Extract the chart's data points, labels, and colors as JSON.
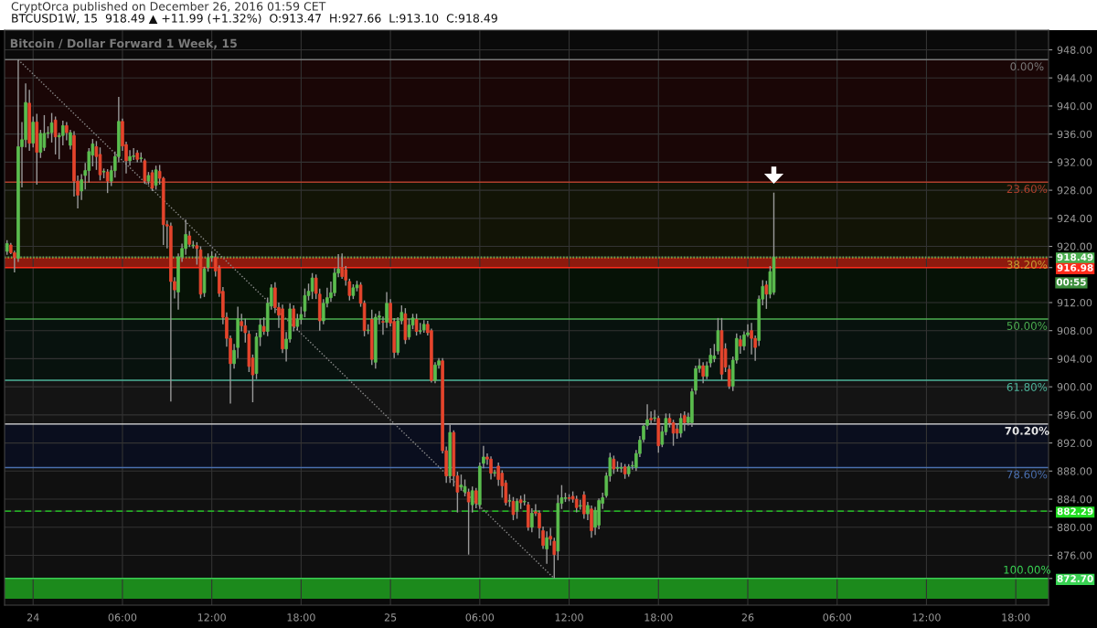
{
  "chart_data": {
    "type": "candlestick",
    "title": "Bitcoin / Dollar Forward 1 Week, 15",
    "subtitle": "BTCUSD1W, 15  918.49 ▲ +11.99 (+1.32%)  O:913.47  H:927.66  L:913.10  C:918.49",
    "annotations": [
      "CryptOrca published on December 26, 2016 01:59 CET",
      "00:55",
      {
        "text": "0.00%",
        "x": "2016-12-26T18:45",
        "y": 946.6
      },
      {
        "text": "23.60%",
        "x": "2016-12-26T18:45",
        "y": 929.16
      },
      {
        "text": "38.20%",
        "x": "2016-12-26T18:45",
        "y": 918.37
      },
      {
        "text": "50.00%",
        "x": "2016-12-26T18:45",
        "y": 909.65
      },
      {
        "text": "61.80%",
        "x": "2016-12-26T18:45",
        "y": 900.93
      },
      {
        "text": "70.20%",
        "x": "2016-12-26T18:45",
        "y": 894.7
      },
      {
        "text": "78.60%",
        "x": "2016-12-26T18:45",
        "y": 888.49
      },
      {
        "text": "100.00%",
        "x": "2016-12-26T18:45",
        "y": 872.7
      }
    ],
    "x": [
      "2016-12-23T22:15",
      "2016-12-23T22:30",
      "2016-12-23T22:45",
      "2016-12-23T23:00",
      "2016-12-23T23:15",
      "2016-12-23T23:30",
      "2016-12-23T23:45",
      "2016-12-24T00:00",
      "2016-12-24T00:15",
      "2016-12-24T00:30",
      "2016-12-24T00:45",
      "2016-12-24T01:00",
      "2016-12-24T01:15",
      "2016-12-24T01:30",
      "2016-12-24T01:45",
      "2016-12-24T02:00",
      "2016-12-24T02:15",
      "2016-12-24T02:30",
      "2016-12-24T02:45",
      "2016-12-24T03:00",
      "2016-12-24T03:15",
      "2016-12-24T03:30",
      "2016-12-24T03:45",
      "2016-12-24T04:00",
      "2016-12-24T04:15",
      "2016-12-24T04:30",
      "2016-12-24T04:45",
      "2016-12-24T05:00",
      "2016-12-24T05:15",
      "2016-12-24T05:30",
      "2016-12-24T05:45",
      "2016-12-24T06:00",
      "2016-12-24T06:15",
      "2016-12-24T06:30",
      "2016-12-24T06:45",
      "2016-12-24T07:00",
      "2016-12-24T07:15",
      "2016-12-24T07:30",
      "2016-12-24T07:45",
      "2016-12-24T08:00",
      "2016-12-24T08:15",
      "2016-12-24T08:30",
      "2016-12-24T08:45",
      "2016-12-24T09:00",
      "2016-12-24T09:15",
      "2016-12-24T09:30",
      "2016-12-24T09:45",
      "2016-12-24T10:00",
      "2016-12-24T10:15",
      "2016-12-24T10:30",
      "2016-12-24T10:45",
      "2016-12-24T11:00",
      "2016-12-24T11:15",
      "2016-12-24T11:30",
      "2016-12-24T11:45",
      "2016-12-24T12:00",
      "2016-12-24T12:15",
      "2016-12-24T12:30",
      "2016-12-24T12:45",
      "2016-12-24T13:00",
      "2016-12-24T13:15",
      "2016-12-24T13:30",
      "2016-12-24T13:45",
      "2016-12-24T14:00",
      "2016-12-24T14:15",
      "2016-12-24T14:30",
      "2016-12-24T14:45",
      "2016-12-24T15:00",
      "2016-12-24T15:15",
      "2016-12-24T15:30",
      "2016-12-24T15:45",
      "2016-12-24T16:00",
      "2016-12-24T16:15",
      "2016-12-24T16:30",
      "2016-12-24T16:45",
      "2016-12-24T17:00",
      "2016-12-24T17:15",
      "2016-12-24T17:30",
      "2016-12-24T17:45",
      "2016-12-24T18:00",
      "2016-12-24T18:15",
      "2016-12-24T18:30",
      "2016-12-24T18:45",
      "2016-12-24T19:00",
      "2016-12-24T19:15",
      "2016-12-24T19:30",
      "2016-12-24T19:45",
      "2016-12-24T20:00",
      "2016-12-24T20:15",
      "2016-12-24T20:30",
      "2016-12-24T20:45",
      "2016-12-24T21:00",
      "2016-12-24T21:15",
      "2016-12-24T21:30",
      "2016-12-24T21:45",
      "2016-12-24T22:00",
      "2016-12-24T22:15",
      "2016-12-24T22:30",
      "2016-12-24T22:45",
      "2016-12-24T23:00",
      "2016-12-24T23:15",
      "2016-12-24T23:30",
      "2016-12-24T23:45",
      "2016-12-25T00:00",
      "2016-12-25T00:15",
      "2016-12-25T00:30",
      "2016-12-25T00:45",
      "2016-12-25T01:00",
      "2016-12-25T01:15",
      "2016-12-25T01:30",
      "2016-12-25T01:45",
      "2016-12-25T02:00",
      "2016-12-25T02:15",
      "2016-12-25T02:30",
      "2016-12-25T02:45",
      "2016-12-25T03:00",
      "2016-12-25T03:15",
      "2016-12-25T03:30",
      "2016-12-25T03:45",
      "2016-12-25T04:00",
      "2016-12-25T04:15",
      "2016-12-25T04:30",
      "2016-12-25T04:45",
      "2016-12-25T05:00",
      "2016-12-25T05:15",
      "2016-12-25T05:30",
      "2016-12-25T05:45",
      "2016-12-25T06:00",
      "2016-12-25T06:15",
      "2016-12-25T06:30",
      "2016-12-25T06:45",
      "2016-12-25T07:00",
      "2016-12-25T07:15",
      "2016-12-25T07:30",
      "2016-12-25T07:45",
      "2016-12-25T08:00",
      "2016-12-25T08:15",
      "2016-12-25T08:30",
      "2016-12-25T08:45",
      "2016-12-25T09:00",
      "2016-12-25T09:15",
      "2016-12-25T09:30",
      "2016-12-25T09:45",
      "2016-12-25T10:00",
      "2016-12-25T10:15",
      "2016-12-25T10:30",
      "2016-12-25T10:45",
      "2016-12-25T11:00",
      "2016-12-25T11:15",
      "2016-12-25T11:30",
      "2016-12-25T11:45",
      "2016-12-25T12:00",
      "2016-12-25T12:15",
      "2016-12-25T12:30",
      "2016-12-25T12:45",
      "2016-12-25T13:00",
      "2016-12-25T13:15",
      "2016-12-25T13:30",
      "2016-12-25T13:45",
      "2016-12-25T14:00",
      "2016-12-25T14:15",
      "2016-12-25T14:30",
      "2016-12-25T14:45",
      "2016-12-25T15:00",
      "2016-12-25T15:15",
      "2016-12-25T15:30",
      "2016-12-25T15:45",
      "2016-12-25T16:00",
      "2016-12-25T16:15",
      "2016-12-25T16:30",
      "2016-12-25T16:45",
      "2016-12-25T17:00",
      "2016-12-25T17:15",
      "2016-12-25T17:30",
      "2016-12-25T17:45",
      "2016-12-25T18:00",
      "2016-12-25T18:15",
      "2016-12-25T18:30",
      "2016-12-25T18:45",
      "2016-12-25T19:00",
      "2016-12-25T19:15",
      "2016-12-25T19:30",
      "2016-12-25T19:45",
      "2016-12-25T20:00",
      "2016-12-25T20:15",
      "2016-12-25T20:30",
      "2016-12-25T20:45",
      "2016-12-25T21:00",
      "2016-12-25T21:15",
      "2016-12-25T21:30",
      "2016-12-25T21:45",
      "2016-12-25T22:00",
      "2016-12-25T22:15",
      "2016-12-25T22:30",
      "2016-12-25T22:45",
      "2016-12-25T23:00",
      "2016-12-25T23:15",
      "2016-12-25T23:30",
      "2016-12-25T23:45",
      "2016-12-26T00:00",
      "2016-12-26T00:15",
      "2016-12-26T00:30",
      "2016-12-26T00:45",
      "2016-12-26T01:00",
      "2016-12-26T01:15",
      "2016-12-26T01:30",
      "2016-12-26T01:45"
    ],
    "ohlc": [
      [
        919.3,
        920.9,
        918.8,
        920.4
      ],
      [
        920.2,
        920.5,
        918.9,
        919.1
      ],
      [
        919.1,
        919.4,
        916.3,
        918.4
      ],
      [
        918.3,
        946.6,
        917.8,
        934.2
      ],
      [
        934.2,
        937.7,
        928.4,
        935.2
      ],
      [
        935.2,
        943.2,
        934.1,
        940.5
      ],
      [
        940.4,
        942.3,
        933.6,
        934.7
      ],
      [
        934.7,
        938.5,
        934.1,
        937.7
      ],
      [
        937.7,
        938.9,
        928.8,
        933.4
      ],
      [
        933.4,
        936.6,
        932.6,
        936.1
      ],
      [
        934.1,
        938.7,
        933.6,
        936.1
      ],
      [
        936.1,
        937.1,
        935.4,
        936.2
      ],
      [
        936.2,
        939.0,
        934.8,
        937.6
      ],
      [
        938.0,
        938.5,
        933.1,
        935.6
      ],
      [
        935.6,
        936.2,
        932.4,
        935.8
      ],
      [
        935.8,
        937.9,
        934.4,
        937.2
      ],
      [
        937.2,
        937.7,
        935.1,
        936.2
      ],
      [
        934.4,
        936.6,
        933.8,
        936.2
      ],
      [
        935.8,
        936.4,
        927.1,
        929.3
      ],
      [
        929.3,
        930.1,
        925.4,
        927.3
      ],
      [
        927.9,
        930.3,
        926.6,
        929.5
      ],
      [
        930.1,
        931.9,
        928.1,
        930.8
      ],
      [
        930.8,
        934.0,
        929.1,
        933.5
      ],
      [
        933.0,
        935.3,
        931.4,
        934.6
      ],
      [
        934.2,
        935.0,
        930.9,
        932.8
      ],
      [
        933.1,
        934.1,
        929.4,
        930.2
      ],
      [
        930.6,
        931.1,
        929.7,
        930.7
      ],
      [
        930.6,
        931.0,
        927.6,
        929.3
      ],
      [
        929.3,
        931.5,
        928.6,
        930.8
      ],
      [
        930.8,
        933.5,
        929.8,
        932.8
      ],
      [
        932.8,
        941.3,
        932.0,
        937.8
      ],
      [
        937.8,
        938.2,
        933.6,
        934.3
      ],
      [
        934.5,
        934.9,
        930.4,
        932.2
      ],
      [
        932.2,
        933.7,
        931.5,
        932.8
      ],
      [
        932.8,
        934.0,
        932.3,
        932.9
      ],
      [
        933.3,
        933.7,
        932.0,
        932.4
      ],
      [
        932.5,
        933.4,
        932.0,
        932.6
      ],
      [
        932.2,
        932.5,
        928.9,
        929.3
      ],
      [
        929.3,
        930.6,
        928.8,
        930.1
      ],
      [
        930.5,
        930.9,
        927.9,
        928.3
      ],
      [
        928.7,
        931.5,
        928.1,
        930.9
      ],
      [
        930.7,
        931.6,
        928.8,
        929.7
      ],
      [
        929.7,
        929.9,
        920.2,
        923.1
      ],
      [
        923.1,
        923.7,
        919.7,
        922.9
      ],
      [
        922.9,
        923.4,
        897.9,
        915.0
      ],
      [
        915.0,
        915.6,
        912.6,
        913.8
      ],
      [
        913.5,
        919.0,
        911.0,
        918.5
      ],
      [
        918.5,
        920.4,
        917.8,
        919.7
      ],
      [
        919.7,
        923.8,
        918.8,
        921.7
      ],
      [
        921.5,
        922.2,
        919.9,
        920.3
      ],
      [
        920.1,
        920.8,
        919.7,
        920.1
      ],
      [
        920.1,
        920.6,
        917.4,
        919.7
      ],
      [
        919.5,
        920.0,
        912.6,
        913.2
      ],
      [
        913.4,
        917.1,
        912.8,
        916.8
      ],
      [
        917.0,
        919.0,
        916.4,
        918.4
      ],
      [
        918.4,
        919.3,
        917.8,
        918.6
      ],
      [
        918.4,
        919.0,
        915.7,
        916.5
      ],
      [
        916.9,
        917.3,
        912.8,
        913.3
      ],
      [
        913.6,
        914.2,
        908.9,
        909.9
      ],
      [
        909.9,
        910.6,
        905.7,
        906.9
      ],
      [
        906.9,
        907.3,
        897.6,
        903.3
      ],
      [
        903.3,
        906.1,
        902.6,
        905.2
      ],
      [
        905.6,
        911.4,
        904.1,
        909.7
      ],
      [
        909.3,
        910.4,
        907.9,
        908.7
      ],
      [
        908.7,
        909.7,
        906.3,
        907.7
      ],
      [
        907.5,
        908.0,
        902.1,
        902.9
      ],
      [
        904.1,
        904.6,
        897.8,
        901.7
      ],
      [
        901.9,
        907.7,
        901.1,
        907.1
      ],
      [
        907.1,
        909.7,
        905.8,
        908.8
      ],
      [
        908.6,
        909.9,
        907.4,
        907.9
      ],
      [
        907.9,
        912.7,
        907.2,
        911.9
      ],
      [
        911.5,
        914.6,
        911.0,
        914.1
      ],
      [
        914.1,
        914.9,
        910.5,
        911.3
      ],
      [
        911.3,
        912.0,
        908.4,
        910.2
      ],
      [
        911.1,
        911.7,
        904.8,
        905.4
      ],
      [
        905.4,
        907.8,
        903.6,
        906.8
      ],
      [
        906.8,
        911.9,
        906.3,
        911.1
      ],
      [
        911.1,
        911.6,
        907.9,
        908.6
      ],
      [
        908.6,
        910.4,
        908.0,
        909.6
      ],
      [
        909.6,
        911.4,
        908.9,
        910.3
      ],
      [
        910.8,
        914.0,
        909.9,
        913.0
      ],
      [
        913.0,
        914.7,
        912.3,
        913.6
      ],
      [
        913.6,
        916.2,
        912.5,
        915.5
      ],
      [
        915.5,
        916.0,
        912.5,
        913.3
      ],
      [
        913.2,
        914.0,
        908.0,
        909.4
      ],
      [
        909.4,
        912.5,
        908.9,
        911.9
      ],
      [
        911.9,
        914.1,
        911.3,
        912.7
      ],
      [
        912.7,
        915.0,
        912.1,
        913.4
      ],
      [
        913.4,
        916.9,
        912.9,
        916.2
      ],
      [
        916.2,
        918.9,
        915.6,
        916.8
      ],
      [
        917.0,
        919.0,
        915.4,
        915.7
      ],
      [
        916.7,
        917.2,
        914.4,
        915.2
      ],
      [
        915.0,
        915.4,
        912.3,
        913.0
      ],
      [
        913.0,
        914.6,
        912.5,
        914.1
      ],
      [
        914.1,
        915.1,
        913.6,
        914.5
      ],
      [
        914.5,
        914.9,
        911.4,
        911.9
      ],
      [
        911.9,
        912.3,
        907.2,
        908.0
      ],
      [
        908.0,
        908.9,
        907.5,
        908.1
      ],
      [
        909.6,
        911.0,
        903.1,
        903.9
      ],
      [
        903.5,
        910.4,
        902.6,
        909.9
      ],
      [
        909.9,
        910.8,
        908.9,
        910.1
      ],
      [
        909.3,
        910.0,
        907.4,
        909.2
      ],
      [
        909.2,
        913.5,
        908.4,
        911.9
      ],
      [
        911.9,
        912.5,
        908.6,
        909.1
      ],
      [
        909.3,
        909.8,
        904.1,
        904.9
      ],
      [
        904.9,
        909.9,
        904.5,
        909.4
      ],
      [
        909.4,
        911.6,
        908.9,
        910.6
      ],
      [
        910.4,
        911.2,
        906.1,
        906.7
      ],
      [
        907.1,
        909.7,
        906.7,
        908.8
      ],
      [
        908.8,
        910.4,
        908.2,
        909.8
      ],
      [
        909.6,
        910.4,
        907.3,
        907.9
      ],
      [
        907.9,
        909.1,
        907.5,
        908.0
      ],
      [
        908.1,
        909.5,
        907.7,
        908.9
      ],
      [
        908.9,
        909.4,
        907.3,
        907.7
      ],
      [
        908.0,
        908.3,
        900.6,
        900.9
      ],
      [
        900.9,
        903.5,
        900.5,
        903.1
      ],
      [
        903.1,
        904.1,
        902.6,
        903.7
      ],
      [
        903.7,
        904.1,
        890.5,
        890.9
      ],
      [
        890.9,
        891.5,
        886.3,
        887.3
      ],
      [
        887.3,
        894.6,
        886.3,
        893.5
      ],
      [
        893.5,
        893.8,
        885.8,
        887.3
      ],
      [
        887.3,
        887.9,
        882.1,
        885.0
      ],
      [
        885.7,
        887.5,
        885.2,
        886.0
      ],
      [
        885.0,
        886.8,
        884.4,
        885.8
      ],
      [
        885.0,
        885.5,
        876.1,
        883.6
      ],
      [
        883.2,
        885.8,
        882.1,
        885.2
      ],
      [
        885.2,
        885.6,
        882.7,
        883.4
      ],
      [
        883.2,
        889.2,
        882.6,
        888.7
      ],
      [
        889.1,
        891.6,
        888.4,
        890.0
      ],
      [
        890.0,
        890.5,
        888.9,
        889.7
      ],
      [
        889.7,
        890.1,
        886.8,
        887.7
      ],
      [
        887.7,
        888.2,
        887.2,
        887.8
      ],
      [
        888.7,
        889.2,
        885.9,
        886.8
      ],
      [
        887.7,
        888.1,
        884.2,
        885.9
      ],
      [
        886.3,
        886.7,
        883.1,
        883.5
      ],
      [
        883.7,
        884.7,
        882.9,
        883.8
      ],
      [
        883.7,
        884.3,
        881.0,
        881.8
      ],
      [
        882.4,
        884.1,
        881.2,
        883.7
      ],
      [
        883.9,
        884.5,
        882.6,
        883.5
      ],
      [
        883.6,
        884.7,
        883.1,
        883.7
      ],
      [
        883.2,
        883.6,
        879.5,
        880.0
      ],
      [
        880.0,
        882.7,
        879.3,
        882.0
      ],
      [
        882.2,
        883.3,
        881.6,
        882.0
      ],
      [
        882.0,
        882.4,
        878.4,
        879.9
      ],
      [
        879.5,
        880.1,
        876.9,
        877.4
      ],
      [
        876.9,
        879.4,
        874.8,
        878.5
      ],
      [
        878.7,
        879.9,
        877.4,
        878.3
      ],
      [
        878.0,
        878.5,
        872.7,
        876.1
      ],
      [
        876.6,
        884.6,
        875.3,
        883.4
      ],
      [
        883.4,
        886.0,
        882.6,
        884.2
      ],
      [
        884.1,
        884.9,
        883.6,
        884.2
      ],
      [
        884.2,
        884.7,
        883.7,
        884.1
      ],
      [
        884.4,
        885.1,
        883.5,
        884.0
      ],
      [
        884.0,
        884.5,
        882.1,
        882.8
      ],
      [
        883.0,
        883.9,
        882.5,
        883.1
      ],
      [
        884.6,
        885.1,
        881.2,
        881.9
      ],
      [
        881.9,
        883.6,
        881.0,
        883.1
      ],
      [
        882.6,
        883.1,
        878.5,
        879.5
      ],
      [
        880.0,
        882.9,
        878.9,
        882.4
      ],
      [
        880.3,
        884.1,
        879.7,
        883.8
      ],
      [
        883.4,
        884.9,
        882.6,
        884.2
      ],
      [
        884.5,
        887.8,
        884.2,
        887.3
      ],
      [
        887.3,
        890.6,
        886.5,
        889.9
      ],
      [
        889.7,
        890.2,
        887.6,
        888.3
      ],
      [
        888.4,
        889.4,
        887.9,
        888.4
      ],
      [
        888.4,
        889.2,
        887.8,
        888.5
      ],
      [
        888.6,
        889.0,
        886.9,
        887.6
      ],
      [
        887.6,
        889.0,
        887.2,
        888.6
      ],
      [
        888.7,
        889.4,
        888.2,
        888.8
      ],
      [
        888.5,
        891.0,
        888.0,
        890.5
      ],
      [
        890.5,
        893.0,
        890.0,
        892.4
      ],
      [
        892.5,
        894.6,
        892.1,
        894.4
      ],
      [
        894.5,
        897.5,
        893.9,
        895.3
      ],
      [
        895.5,
        896.5,
        894.7,
        895.3
      ],
      [
        895.5,
        896.7,
        895.0,
        895.6
      ],
      [
        895.5,
        895.9,
        890.6,
        891.6
      ],
      [
        891.8,
        894.4,
        891.4,
        893.6
      ],
      [
        893.6,
        896.2,
        893.1,
        895.5
      ],
      [
        895.5,
        896.2,
        894.2,
        894.9
      ],
      [
        894.9,
        895.3,
        891.6,
        893.4
      ],
      [
        894.0,
        894.7,
        892.6,
        893.4
      ],
      [
        893.4,
        896.2,
        892.8,
        895.5
      ],
      [
        895.9,
        896.5,
        893.7,
        894.9
      ],
      [
        894.9,
        896.3,
        894.5,
        895.7
      ],
      [
        894.9,
        899.8,
        894.3,
        899.3
      ],
      [
        899.5,
        903.0,
        898.9,
        902.6
      ],
      [
        902.6,
        904.0,
        902.0,
        903.0
      ],
      [
        903.0,
        903.5,
        900.5,
        901.5
      ],
      [
        901.5,
        903.6,
        901.1,
        903.0
      ],
      [
        903.4,
        905.5,
        902.8,
        904.5
      ],
      [
        904.0,
        906.1,
        903.5,
        904.4
      ],
      [
        905.1,
        909.8,
        904.6,
        908.0
      ],
      [
        908.0,
        909.8,
        901.0,
        901.8
      ],
      [
        905.4,
        906.2,
        902.1,
        902.8
      ],
      [
        902.5,
        903.1,
        899.7,
        900.1
      ],
      [
        900.1,
        904.3,
        899.4,
        903.8
      ],
      [
        903.8,
        907.6,
        903.3,
        906.9
      ],
      [
        906.7,
        907.3,
        904.7,
        905.8
      ],
      [
        905.8,
        907.9,
        905.2,
        907.4
      ],
      [
        907.4,
        908.9,
        907.1,
        907.7
      ],
      [
        908.0,
        909.1,
        904.6,
        906.9
      ],
      [
        906.9,
        907.3,
        903.7,
        905.6
      ],
      [
        906.6,
        913.0,
        905.8,
        912.5
      ],
      [
        912.5,
        915.2,
        911.6,
        914.3
      ],
      [
        914.5,
        915.1,
        911.1,
        913.2
      ],
      [
        913.2,
        917.2,
        912.6,
        916.4
      ],
      [
        913.47,
        927.66,
        913.1,
        918.49
      ]
    ],
    "series": [
      {
        "type": "line",
        "x": [
          "2016-12-23T23:00",
          "2016-12-25T11:00"
        ],
        "values": [
          946.6,
          872.7
        ],
        "color": "#8c8c8c",
        "line_style": "dotted"
      }
    ],
    "xlim": [
      "2016-12-23T22:05",
      "2016-12-26T20:12"
    ],
    "xticks": [
      {
        "value": "2016-12-24T00:00",
        "label": "24"
      },
      {
        "value": "2016-12-24T06:00",
        "label": "06:00"
      },
      {
        "value": "2016-12-24T12:00",
        "label": "12:00"
      },
      {
        "value": "2016-12-24T18:00",
        "label": "18:00"
      },
      {
        "value": "2016-12-25T00:00",
        "label": "25"
      },
      {
        "value": "2016-12-25T06:00",
        "label": "06:00"
      },
      {
        "value": "2016-12-25T12:00",
        "label": "12:00"
      },
      {
        "value": "2016-12-25T18:00",
        "label": "18:00"
      },
      {
        "value": "2016-12-26T00:00",
        "label": "26"
      },
      {
        "value": "2016-12-26T06:00",
        "label": "06:00"
      },
      {
        "value": "2016-12-26T12:00",
        "label": "12:00"
      },
      {
        "value": "2016-12-26T18:00",
        "label": "18:00"
      }
    ],
    "ylim": [
      868.9,
      950.8
    ],
    "yticks": [
      {
        "value": 876,
        "label": "876.00"
      },
      {
        "value": 880,
        "label": "880.00"
      },
      {
        "value": 884,
        "label": "884.00"
      },
      {
        "value": 888,
        "label": "888.00"
      },
      {
        "value": 892,
        "label": "892.00"
      },
      {
        "value": 896,
        "label": "896.00"
      },
      {
        "value": 900,
        "label": "900.00"
      },
      {
        "value": 904,
        "label": "904.00"
      },
      {
        "value": 908,
        "label": "908.00"
      },
      {
        "value": 912,
        "label": "912.00"
      },
      {
        "value": 920,
        "label": "920.00"
      },
      {
        "value": 924,
        "label": "924.00"
      },
      {
        "value": 928,
        "label": "928.00"
      },
      {
        "value": 932,
        "label": "932.00"
      },
      {
        "value": 936,
        "label": "936.00"
      },
      {
        "value": 940,
        "label": "940.00"
      },
      {
        "value": 944,
        "label": "944.00"
      },
      {
        "value": 948,
        "label": "948.00"
      },
      {
        "value": 918.49,
        "label": "918.49"
      },
      {
        "value": 916.98,
        "label": "916.98"
      },
      {
        "value": 882.29,
        "label": "882.29"
      },
      {
        "value": 872.7,
        "label": "872.70"
      }
    ],
    "grid": true,
    "bands": [
      {
        "axis": "y",
        "from": 929.16,
        "to": 946.6,
        "color": "#1a0606"
      },
      {
        "axis": "y",
        "from": 918.37,
        "to": 929.16,
        "color": "#121406"
      },
      {
        "axis": "y",
        "from": 909.65,
        "to": 918.37,
        "color": "#061206"
      },
      {
        "axis": "y",
        "from": 900.93,
        "to": 909.65,
        "color": "#08120e"
      },
      {
        "axis": "y",
        "from": 894.7,
        "to": 900.93,
        "color": "#141414"
      },
      {
        "axis": "y",
        "from": 888.49,
        "to": 894.7,
        "color": "#0a0e1e"
      },
      {
        "axis": "y",
        "from": 872.7,
        "to": 888.49,
        "color": "#101010"
      },
      {
        "axis": "y",
        "from": 869.8,
        "to": 872.7,
        "color": "#1c8a1c"
      },
      {
        "axis": "y",
        "from": 916.98,
        "to": 918.49,
        "color": "#8e1a0e"
      }
    ],
    "ref_lines": [
      {
        "axis": "y",
        "value": 946.6,
        "color": "#7a7a7a"
      },
      {
        "axis": "y",
        "value": 929.16,
        "color": "#b0402c"
      },
      {
        "axis": "y",
        "value": 918.37,
        "color": "#c8a030",
        "line_style": "dotted"
      },
      {
        "axis": "y",
        "value": 909.65,
        "color": "#4caf50"
      },
      {
        "axis": "y",
        "value": 900.93,
        "color": "#4db39a"
      },
      {
        "axis": "y",
        "value": 894.7,
        "color": "#e6e6e6"
      },
      {
        "axis": "y",
        "value": 888.49,
        "color": "#4a6fb0"
      },
      {
        "axis": "y",
        "value": 872.7,
        "color": "#39d353"
      },
      {
        "axis": "y",
        "value": 918.49,
        "color": "#4caf50",
        "line_style": "dotted"
      },
      {
        "axis": "y",
        "value": 916.98,
        "color": "#ff2a1a"
      },
      {
        "axis": "y",
        "value": 882.29,
        "color": "#22dd22",
        "line_style": "dashed"
      }
    ]
  }
}
